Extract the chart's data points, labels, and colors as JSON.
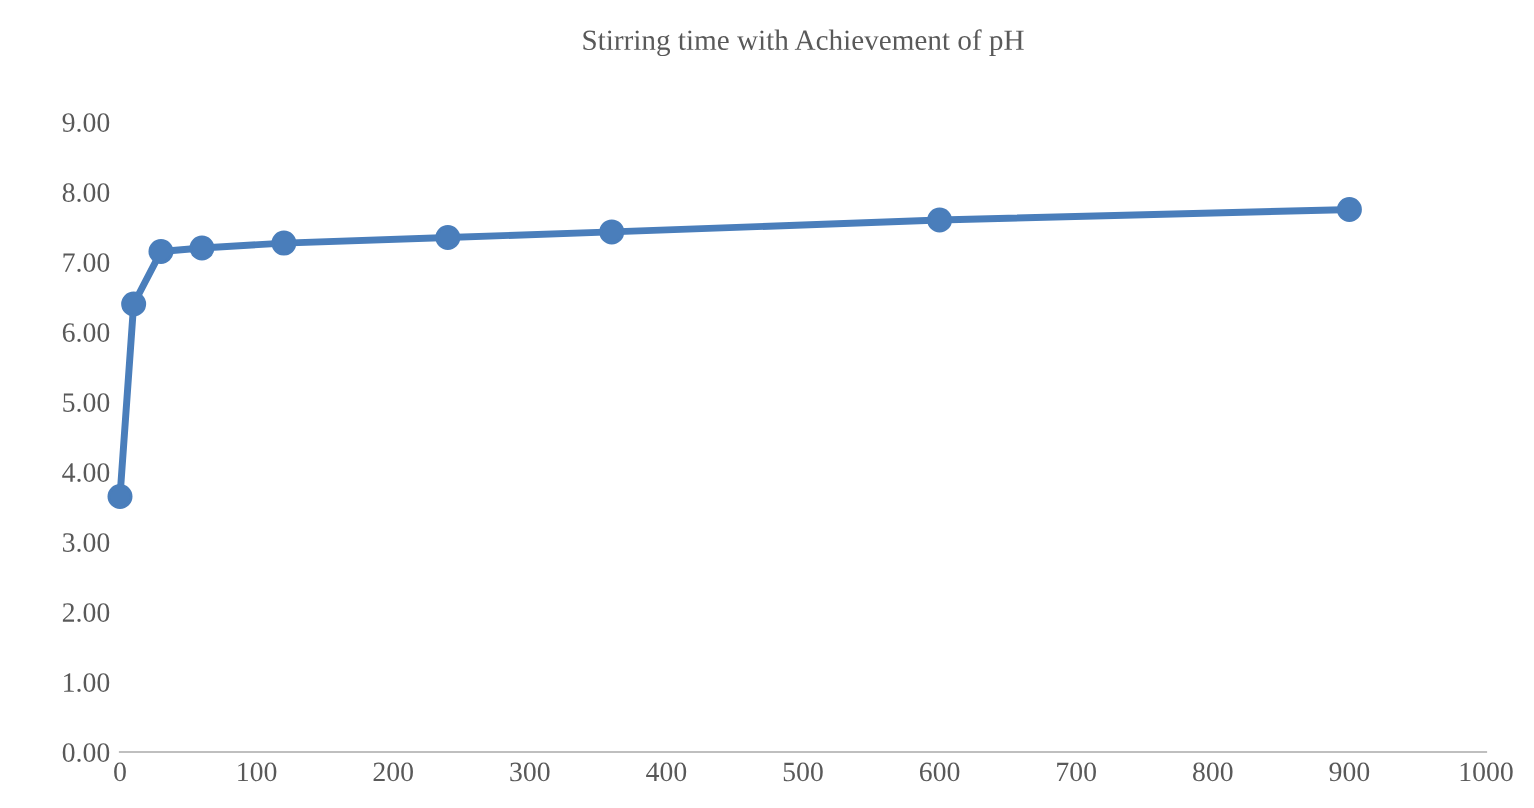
{
  "chart_data": {
    "type": "line",
    "title": "Stirring time with Achievement of pH",
    "x": [
      0,
      10,
      30,
      60,
      120,
      240,
      360,
      600,
      900
    ],
    "series": [
      {
        "color": "#4a7ebb",
        "values": [
          3.65,
          6.4,
          7.15,
          7.2,
          7.27,
          7.35,
          7.43,
          7.6,
          7.75
        ]
      }
    ],
    "marker": "circle",
    "line_style": "solid",
    "grid": false,
    "xlim": [
      0,
      1000
    ],
    "xticks": [
      0,
      100,
      200,
      300,
      400,
      500,
      600,
      700,
      800,
      900,
      1000
    ],
    "ylim": [
      0,
      9
    ],
    "yticks": [
      {
        "value": 0,
        "label": "0.00"
      },
      {
        "value": 1,
        "label": "1.00"
      },
      {
        "value": 2,
        "label": "2.00"
      },
      {
        "value": 3,
        "label": "3.00"
      },
      {
        "value": 4,
        "label": "4.00"
      },
      {
        "value": 5,
        "label": "5.00"
      },
      {
        "value": 6,
        "label": "6.00"
      },
      {
        "value": 7,
        "label": "7.00"
      },
      {
        "value": 8,
        "label": "8.00"
      },
      {
        "value": 9,
        "label": "9.00"
      }
    ]
  }
}
